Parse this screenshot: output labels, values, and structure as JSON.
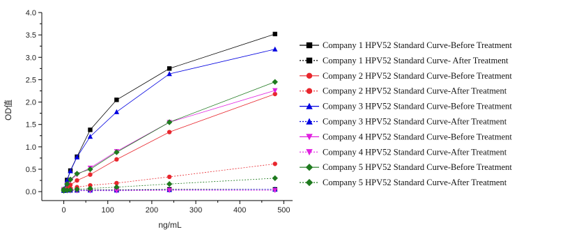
{
  "chart_data": {
    "type": "line",
    "xlabel": "ng/mL",
    "ylabel": "OD值",
    "xlim": [
      -50,
      520
    ],
    "ylim": [
      -0.2,
      4.0
    ],
    "xticks": [
      0,
      100,
      200,
      300,
      400,
      500
    ],
    "yticks": [
      0.0,
      0.5,
      1.0,
      1.5,
      2.0,
      2.5,
      3.0,
      3.5,
      4.0
    ],
    "xtick_labels": [
      "0",
      "100",
      "200",
      "300",
      "400",
      "500"
    ],
    "ytick_labels": [
      "0.0",
      "0.5",
      "1.0",
      "1.5",
      "2.0",
      "2.5",
      "3.0",
      "3.5",
      "4.0"
    ],
    "legend_position": "right",
    "grid": false,
    "series": [
      {
        "name": "Company 1 HPV52 Standard Curve-Before Treatment",
        "color": "#000000",
        "marker": "square",
        "dashed": false,
        "x": [
          0,
          7.5,
          15,
          30,
          60,
          120,
          240,
          480
        ],
        "y": [
          0.05,
          0.26,
          0.47,
          0.78,
          1.38,
          2.05,
          2.75,
          3.52
        ]
      },
      {
        "name": "Company 1 HPV52 Standard Curve- After Treatment",
        "color": "#000000",
        "marker": "square",
        "dashed": true,
        "x": [
          0,
          7.5,
          15,
          30,
          60,
          120,
          240,
          480
        ],
        "y": [
          0.03,
          0.03,
          0.03,
          0.03,
          0.04,
          0.04,
          0.05,
          0.05
        ]
      },
      {
        "name": "Company 2 HPV52 Standard Curve-Before Treatment",
        "color": "#e8262d",
        "marker": "circle",
        "dashed": false,
        "x": [
          0,
          7.5,
          15,
          30,
          60,
          120,
          240,
          480
        ],
        "y": [
          0.04,
          0.1,
          0.15,
          0.25,
          0.38,
          0.72,
          1.33,
          2.18
        ]
      },
      {
        "name": "Company 2 HPV52 Standard Curve-After Treatment",
        "color": "#e8262d",
        "marker": "circle",
        "dashed": true,
        "x": [
          0,
          7.5,
          15,
          30,
          60,
          120,
          240,
          480
        ],
        "y": [
          0.03,
          0.05,
          0.07,
          0.1,
          0.14,
          0.19,
          0.33,
          0.62
        ]
      },
      {
        "name": "Company 3 HPV52 Standard Curve-Before Treatment",
        "color": "#0000e0",
        "marker": "triangle-up",
        "dashed": false,
        "x": [
          0,
          7.5,
          15,
          30,
          60,
          120,
          240,
          480
        ],
        "y": [
          0.05,
          0.25,
          0.46,
          0.77,
          1.23,
          1.78,
          2.63,
          3.18
        ]
      },
      {
        "name": "Company 3 HPV52 Standard Curve-After Treatment",
        "color": "#0000e0",
        "marker": "triangle-up",
        "dashed": true,
        "x": [
          0,
          7.5,
          15,
          30,
          60,
          120,
          240,
          480
        ],
        "y": [
          0.02,
          0.03,
          0.03,
          0.03,
          0.03,
          0.03,
          0.04,
          0.05
        ]
      },
      {
        "name": "Company 4 HPV52 Standard Curve-Before Treatment",
        "color": "#e020e0",
        "marker": "triangle-down",
        "dashed": false,
        "x": [
          0,
          7.5,
          15,
          30,
          60,
          120,
          240,
          480
        ],
        "y": [
          0.05,
          0.16,
          0.25,
          0.38,
          0.53,
          0.9,
          1.55,
          2.26
        ]
      },
      {
        "name": "Company 4 HPV52 Standard Curve-After Treatment",
        "color": "#e020e0",
        "marker": "triangle-down",
        "dashed": true,
        "x": [
          0,
          7.5,
          15,
          30,
          60,
          120,
          240,
          480
        ],
        "y": [
          0.02,
          0.02,
          0.02,
          0.02,
          0.02,
          0.02,
          0.03,
          0.03
        ]
      },
      {
        "name": "Company 5 HPV52 Standard Curve-Before Treatment",
        "color": "#1f7a1f",
        "marker": "diamond",
        "dashed": false,
        "x": [
          0,
          7.5,
          15,
          30,
          60,
          120,
          240,
          480
        ],
        "y": [
          0.05,
          0.17,
          0.27,
          0.4,
          0.5,
          0.88,
          1.55,
          2.45
        ]
      },
      {
        "name": "Company 5 HPV52 Standard Curve-After Treatment",
        "color": "#1f7a1f",
        "marker": "diamond",
        "dashed": true,
        "x": [
          0,
          7.5,
          15,
          30,
          60,
          120,
          240,
          480
        ],
        "y": [
          0.02,
          0.03,
          0.04,
          0.05,
          0.07,
          0.1,
          0.17,
          0.3
        ]
      }
    ]
  }
}
